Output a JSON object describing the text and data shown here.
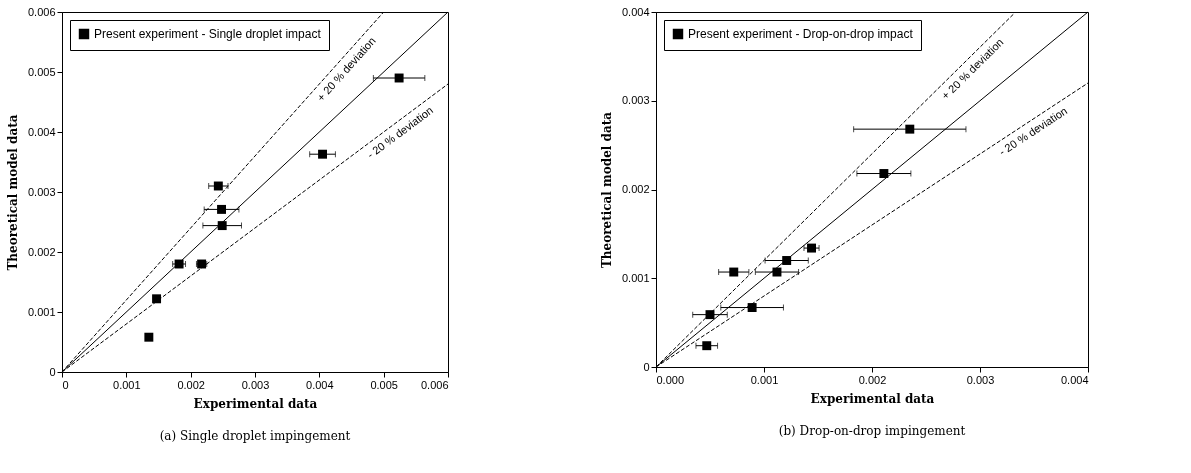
{
  "chart_data": [
    {
      "type": "scatter",
      "title": "(a) Single droplet impingement",
      "xlabel": "Experimental data",
      "ylabel": "Theoretical model data",
      "xlim": [
        0,
        0.006
      ],
      "ylim": [
        0,
        0.006
      ],
      "xticks": [
        {
          "value": 0,
          "label": "0"
        },
        0.001,
        0.002,
        0.003,
        0.004,
        0.005,
        0.006
      ],
      "yticks": [
        {
          "value": 0,
          "label": "0"
        },
        0.001,
        0.002,
        0.003,
        0.004,
        0.005,
        0.006
      ],
      "grid": false,
      "legend": "top left",
      "series": [
        {
          "name": "Present experiment - Single droplet impact",
          "color": "#000000",
          "marker": "square",
          "x": [
            0.00135,
            0.00147,
            0.00182,
            0.00217,
            0.00249,
            0.00248,
            0.00243,
            0.00405,
            0.00524
          ],
          "values": [
            0.00058,
            0.00122,
            0.0018,
            0.0018,
            0.00244,
            0.00271,
            0.0031,
            0.00363,
            0.0049
          ],
          "xerrors": [
            5e-05,
            5e-05,
            0.0001,
            8e-05,
            0.0003,
            0.00027,
            0.00015,
            0.0002,
            0.0004
          ]
        },
        {
          "type": "line",
          "color": "#000000",
          "line_style": "solid",
          "x": [
            0,
            0.006
          ],
          "values": [
            0,
            0.006
          ]
        },
        {
          "type": "line",
          "color": "#000000",
          "line_style": "dashed",
          "x": [
            0,
            0.005
          ],
          "values": [
            0,
            0.006
          ]
        },
        {
          "type": "line",
          "color": "#000000",
          "line_style": "dashed",
          "x": [
            0,
            0.006
          ],
          "values": [
            0,
            0.0048
          ]
        }
      ],
      "annotations": [
        "+ 20 % deviation",
        "- 20 % deviation"
      ]
    },
    {
      "type": "scatter",
      "title": "(b) Drop-on-drop impingement",
      "xlabel": "Experimental data",
      "ylabel": "Theoretical model data",
      "xlim": [
        0,
        0.004
      ],
      "ylim": [
        0,
        0.004
      ],
      "xticks": [
        {
          "value": 0,
          "label": "0.000"
        },
        0.001,
        0.002,
        0.003,
        0.004
      ],
      "yticks": [
        {
          "value": 0,
          "label": "0"
        },
        0.001,
        0.002,
        0.003,
        0.004
      ],
      "grid": false,
      "legend": "top left",
      "series": [
        {
          "name": "Present experiment - Drop-on-drop impact",
          "color": "#000000",
          "marker": "square",
          "x": [
            0.00047,
            0.0005,
            0.00072,
            0.00089,
            0.00112,
            0.00121,
            0.00144,
            0.00211,
            0.00235
          ],
          "values": [
            0.00024,
            0.00059,
            0.00107,
            0.00067,
            0.00107,
            0.0012,
            0.00134,
            0.00218,
            0.00268
          ],
          "xerrors": [
            0.0001,
            0.00016,
            0.00014,
            0.00029,
            0.0002,
            0.0002,
            7e-05,
            0.00025,
            0.00052
          ]
        },
        {
          "type": "line",
          "color": "#000000",
          "line_style": "solid",
          "x": [
            0,
            0.004
          ],
          "values": [
            0,
            0.004
          ]
        },
        {
          "type": "line",
          "color": "#000000",
          "line_style": "dashed",
          "x": [
            0,
            0.00333
          ],
          "values": [
            0,
            0.004
          ]
        },
        {
          "type": "line",
          "color": "#000000",
          "line_style": "dashed",
          "x": [
            0,
            0.004
          ],
          "values": [
            0,
            0.0032
          ]
        }
      ],
      "annotations": [
        "+ 20 % deviation",
        "- 20 % deviation"
      ]
    }
  ]
}
